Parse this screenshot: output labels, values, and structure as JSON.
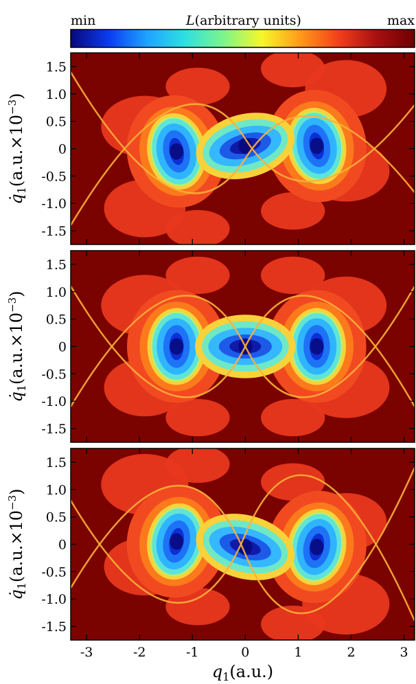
{
  "colorbar": {
    "label": "L(arbitrary units)",
    "label_italic_part": "L",
    "label_rest": "(arbitrary units)",
    "min_label": "min",
    "max_label": "max",
    "colors": [
      "#08087a",
      "#0a3cf0",
      "#1fa3ff",
      "#2fe0e0",
      "#7df58a",
      "#f7f72a",
      "#ff9a1a",
      "#f2401a",
      "#a81010",
      "#6e0000"
    ]
  },
  "chart_data": [
    {
      "type": "heatmap",
      "panel": "top",
      "xlim": [
        -3.3,
        3.2
      ],
      "ylim": [
        -1.75,
        1.75
      ],
      "xticks": [
        -3,
        -2,
        -1,
        0,
        1,
        2,
        3
      ],
      "yticks": [
        -1.5,
        -1.0,
        -0.5,
        0,
        0.5,
        1.0,
        1.5
      ],
      "ytick_labels": [
        "-1.5",
        "-1.0",
        "-0.5",
        "0",
        "0.5",
        "1.0",
        "1.5"
      ],
      "ylabel": "q̇1(a.u.×10−3)",
      "minima": [
        [
          -1.3,
          -0.05
        ],
        [
          0,
          0.05
        ],
        [
          1.35,
          0.05
        ]
      ],
      "tilt": 0.3
    },
    {
      "type": "heatmap",
      "panel": "middle",
      "xlim": [
        -3.3,
        3.2
      ],
      "ylim": [
        -1.75,
        1.75
      ],
      "xticks": [
        -3,
        -2,
        -1,
        0,
        1,
        2,
        3
      ],
      "yticks": [
        -1.5,
        -1.0,
        -0.5,
        0,
        0.5,
        1.0,
        1.5
      ],
      "ytick_labels": [
        "-1.5",
        "-1.0",
        "-0.5",
        "0",
        "0.5",
        "1.0",
        "1.5"
      ],
      "ylabel": "q̇1(a.u.×10−3)",
      "minima": [
        [
          -1.3,
          0.0
        ],
        [
          0,
          0.0
        ],
        [
          1.35,
          0.0
        ]
      ],
      "tilt": 0.0
    },
    {
      "type": "heatmap",
      "panel": "bottom",
      "xlim": [
        -3.3,
        3.2
      ],
      "ylim": [
        -1.75,
        1.75
      ],
      "xticks": [
        -3,
        -2,
        -1,
        0,
        1,
        2,
        3
      ],
      "xtick_labels": [
        "-3",
        "-2",
        "-1",
        "0",
        "1",
        "2",
        "3"
      ],
      "yticks": [
        -1.5,
        -1.0,
        -0.5,
        0,
        0.5,
        1.0,
        1.5
      ],
      "ytick_labels": [
        "-1.5",
        "-1.0",
        "-0.5",
        "0",
        "0.5",
        "1.0",
        "1.5"
      ],
      "ylabel": "q̇1(a.u.×10−3)",
      "xlabel": "q1(a.u.)",
      "minima": [
        [
          -1.3,
          0.05
        ],
        [
          0,
          -0.05
        ],
        [
          1.35,
          -0.05
        ]
      ],
      "tilt": -0.3
    }
  ],
  "axis_text": {
    "ylabel_var": "q̇",
    "ylabel_sub": "1",
    "ylabel_units": "(a.u.×10",
    "ylabel_exp": "−3",
    "ylabel_close": ")",
    "xlabel_var": "q",
    "xlabel_sub": "1",
    "xlabel_units": "(a.u.)"
  }
}
